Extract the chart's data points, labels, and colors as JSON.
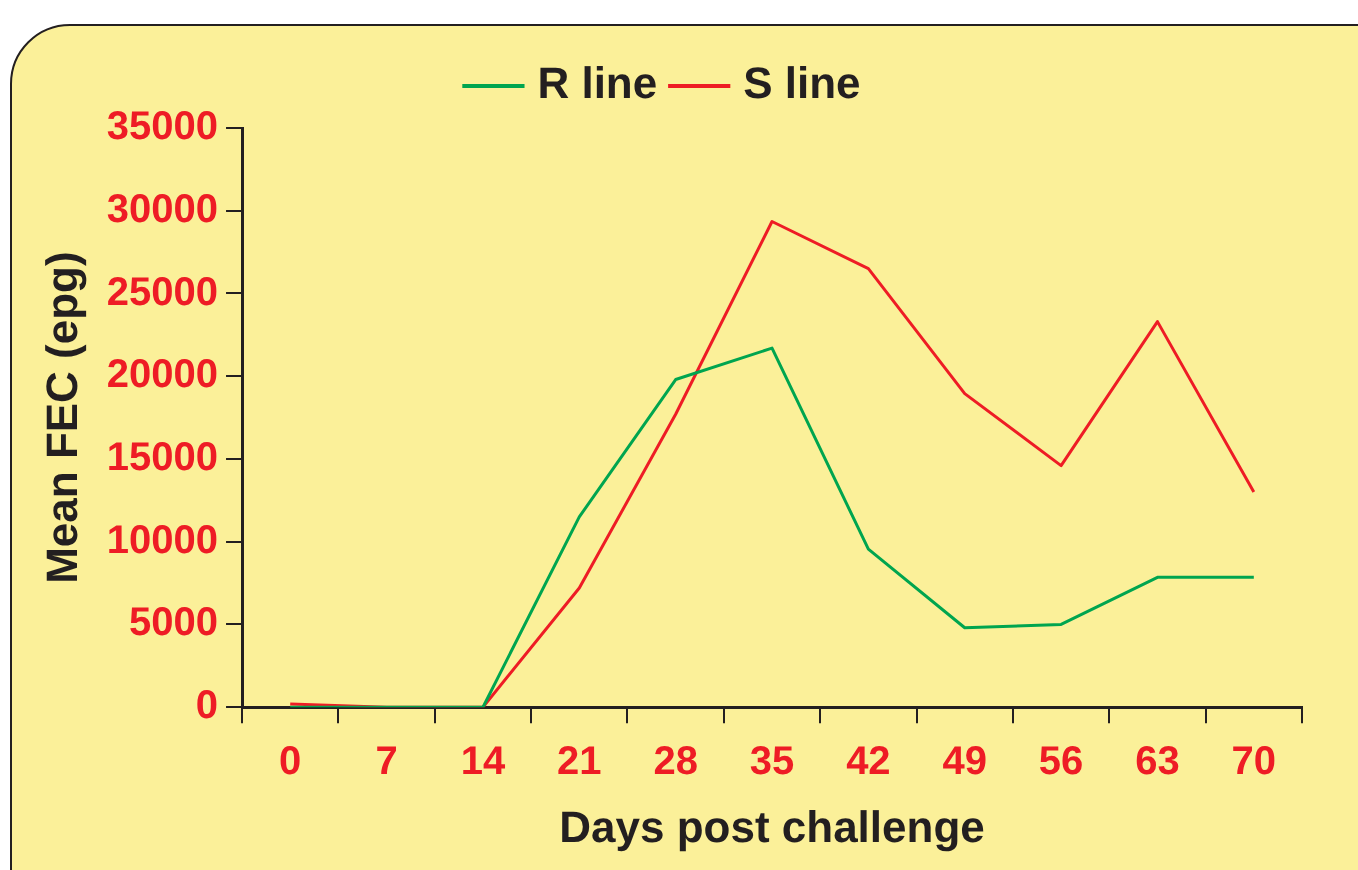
{
  "chart_data": {
    "type": "line",
    "xlabel": "Days post challenge",
    "ylabel": "Mean FEC (epg)",
    "categories": [
      "0",
      "7",
      "14",
      "21",
      "28",
      "35",
      "42",
      "49",
      "56",
      "63",
      "70"
    ],
    "series": [
      {
        "name": "R line",
        "color": "#00a54f",
        "values": [
          0,
          0,
          0,
          11500,
          19800,
          21700,
          9550,
          4800,
          5000,
          7850,
          7850
        ]
      },
      {
        "name": "S line",
        "color": "#ee1c25",
        "values": [
          200,
          0,
          0,
          7200,
          17700,
          29350,
          26500,
          18950,
          14600,
          23300,
          13000
        ]
      }
    ],
    "ylim": [
      0,
      35000
    ],
    "yticks": [
      0,
      5000,
      10000,
      15000,
      20000,
      25000,
      30000,
      35000
    ],
    "grid": false,
    "legend": "top",
    "marker": "none",
    "line_style": "solid"
  }
}
